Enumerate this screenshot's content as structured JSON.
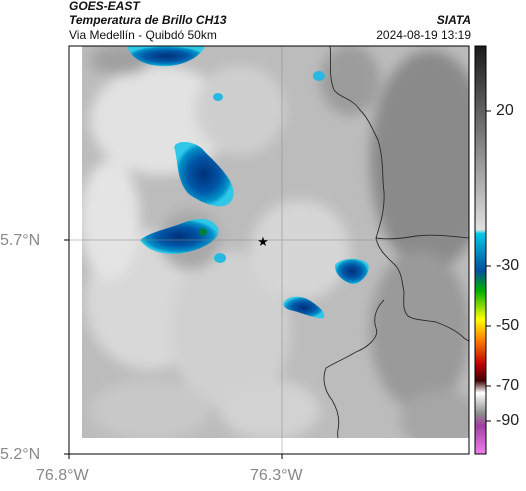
{
  "header": {
    "satellite": "GOES-EAST",
    "product": "Temperatura de Brillo CH13",
    "route": "Via Medellín - Quibdó 50km",
    "org": "SIATA",
    "datetime": "2024-08-19 13:19"
  },
  "map": {
    "lat_ticks": [
      "5.7°N",
      "5.2°N"
    ],
    "lon_ticks": [
      "76.8°W",
      "76.3°W"
    ],
    "marker_icon": "star-icon",
    "gridlines": true
  },
  "colorbar": {
    "ticks": [
      "20",
      "-30",
      "-50",
      "-70",
      "-90"
    ],
    "gradient": [
      "#e6e6e6",
      "#202020",
      "#00bfe0",
      "#004a9a",
      "#00c000",
      "#ffff00",
      "#ff7f00",
      "#d00000",
      "#500000",
      "#ffffff",
      "#9040a0",
      "#e060e0"
    ]
  }
}
